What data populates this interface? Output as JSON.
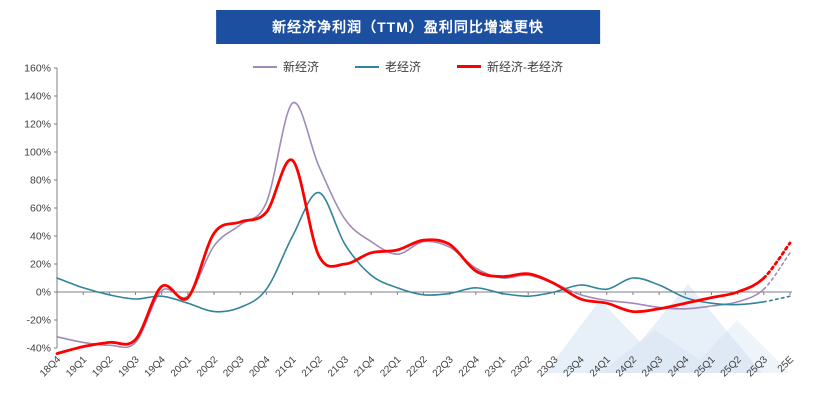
{
  "title": "新经济净利润（TTM）盈利同比增速更快",
  "colors": {
    "title_bg": "#1C4FA0",
    "title_text": "#FFFFFF",
    "legend_text": "#404040",
    "axis_line": "#808080",
    "axis_text": "#404040",
    "watermark": "#CFDFF2",
    "new_economy": "#A08AB8",
    "old_economy": "#31849B",
    "diff_line": "#FF0000"
  },
  "chart_data": {
    "type": "line",
    "title": "新经济净利润（TTM）盈利同比增速更快",
    "xlabel": "",
    "ylabel": "",
    "ylim": [
      -40,
      160
    ],
    "yticks": [
      160,
      140,
      120,
      100,
      80,
      60,
      40,
      20,
      0,
      -20,
      -40
    ],
    "ytick_labels": [
      "160%",
      "140%",
      "120%",
      "100%",
      "80%",
      "60%",
      "40%",
      "20%",
      "0%",
      "-20%",
      "-40%"
    ],
    "grid": false,
    "legend_position": "top",
    "dotted_tail_note": "last segment (25Q3 to 25E) is a dotted forecast for all series",
    "categories": [
      "18Q4",
      "19Q1",
      "19Q2",
      "19Q3",
      "19Q4",
      "20Q1",
      "20Q2",
      "20Q3",
      "20Q4",
      "21Q1",
      "21Q2",
      "21Q3",
      "21Q4",
      "22Q1",
      "22Q2",
      "22Q3",
      "22Q4",
      "23Q1",
      "23Q2",
      "23Q3",
      "23Q4",
      "24Q1",
      "24Q2",
      "24Q3",
      "24Q4",
      "25Q1",
      "25Q2",
      "25Q3",
      "25E"
    ],
    "series": [
      {
        "name": "新经济",
        "color": "#A08AB8",
        "width": 1.6,
        "dotted_tail": 1,
        "values": [
          -32,
          -36,
          -38,
          -36,
          1,
          -3,
          33,
          48,
          64,
          135,
          90,
          52,
          36,
          27,
          36,
          32,
          17,
          10,
          12,
          6,
          -2,
          -6,
          -8,
          -11,
          -12,
          -10,
          -7,
          2,
          28
        ]
      },
      {
        "name": "老经济",
        "color": "#31849B",
        "width": 1.6,
        "dotted_tail": 1,
        "values": [
          10,
          3,
          -2,
          -5,
          -3,
          -8,
          -14,
          -11,
          2,
          40,
          71,
          34,
          12,
          3,
          -2,
          -1,
          3,
          -1,
          -3,
          0,
          5,
          2,
          10,
          5,
          -4,
          -8,
          -9,
          -7,
          -3
        ]
      },
      {
        "name": "新经济-老经济",
        "color": "#FF0000",
        "width": 2.8,
        "dotted_tail": 1,
        "values": [
          -44,
          -39,
          -36,
          -34,
          4,
          -4,
          42,
          50,
          57,
          94,
          26,
          20,
          28,
          30,
          37,
          34,
          15,
          11,
          13,
          6,
          -5,
          -8,
          -14,
          -12,
          -8,
          -4,
          0,
          10,
          35
        ]
      }
    ]
  }
}
